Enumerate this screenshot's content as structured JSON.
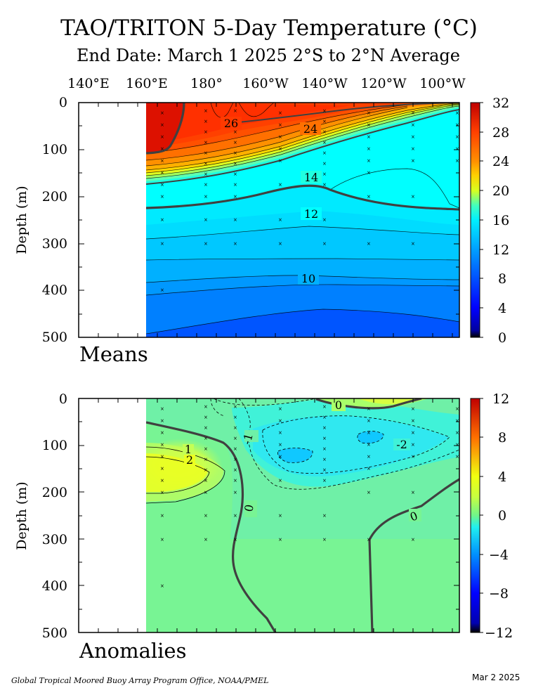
{
  "title": "TAO/TRITON 5-Day Temperature (°C)",
  "subtitle": "End Date: March 1 2025   2°S to 2°N Average",
  "longitude_labels": [
    "140°E",
    "160°E",
    "180°",
    "160°W",
    "140°W",
    "120°W",
    "100°W"
  ],
  "footer": "Global Tropical Moored Buoy Array Program Office, NOAA/PMEL",
  "date": "Mar  2 2025",
  "chart_data": [
    {
      "type": "heatmap",
      "panel": "Means",
      "ylabel": "Depth (m)",
      "x_range_lon_east": [
        130,
        280
      ],
      "data_start_lon_east": 162,
      "yticks": [
        0,
        100,
        200,
        300,
        400,
        500
      ],
      "ylim": [
        500,
        0
      ],
      "colorbar_ticks": [
        32,
        28,
        24,
        20,
        16,
        12,
        8,
        4,
        0
      ],
      "colorbar_range": [
        0,
        32
      ],
      "contour_labels": [
        {
          "text": "26",
          "lon": 187,
          "depth": 45
        },
        {
          "text": "24",
          "lon": 217,
          "depth": 55
        },
        {
          "text": "14",
          "lon": 217,
          "depth": 158
        },
        {
          "text": "12",
          "lon": 220,
          "depth": 233
        },
        {
          "text": "10",
          "lon": 216,
          "depth": 372
        }
      ],
      "isotherm_depths": {
        "lon": [
          162,
          180,
          200,
          220,
          240,
          260,
          276
        ],
        "d26": [
          105,
          70,
          50,
          25,
          12,
          5,
          2
        ],
        "d24": [
          150,
          130,
          100,
          75,
          50,
          25,
          8
        ],
        "d20": [
          165,
          150,
          130,
          105,
          75,
          45,
          18
        ],
        "d14": [
          225,
          210,
          180,
          155,
          120,
          85,
          55
        ],
        "d12": [
          295,
          280,
          260,
          240,
          270,
          285,
          285
        ],
        "d10": [
          395,
          385,
          370,
          370,
          380,
          385,
          390
        ]
      },
      "buoy_longitudes": [
        165,
        180,
        190,
        205,
        220,
        235,
        250,
        265
      ]
    },
    {
      "type": "heatmap",
      "panel": "Anomalies",
      "ylabel": "Depth (m)",
      "x_range_lon_east": [
        130,
        280
      ],
      "data_start_lon_east": 162,
      "yticks": [
        0,
        100,
        200,
        300,
        400,
        500
      ],
      "ylim": [
        500,
        0
      ],
      "colorbar_ticks": [
        12,
        8,
        4,
        0,
        -4,
        -8,
        -12
      ],
      "colorbar_range": [
        -12,
        12
      ],
      "contour_labels": [
        {
          "text": "0",
          "lon": 225,
          "depth": 12
        },
        {
          "text": "-1",
          "lon": 195,
          "depth": 80
        },
        {
          "text": "-2",
          "lon": 254,
          "depth": 100
        },
        {
          "text": "1",
          "lon": 170,
          "depth": 115
        },
        {
          "text": "2",
          "lon": 170,
          "depth": 135
        },
        {
          "text": "0",
          "lon": 193,
          "depth": 240
        },
        {
          "text": "0",
          "lon": 258,
          "depth": 250
        }
      ],
      "features": [
        {
          "name": "warm anomaly core",
          "lon": 166,
          "depth": 150,
          "value": 3
        },
        {
          "name": "cool anomaly core",
          "lon": 215,
          "depth": 125,
          "value": -3
        },
        {
          "name": "cool anomaly core",
          "lon": 245,
          "depth": 85,
          "value": -3
        },
        {
          "name": "warm surface anomaly",
          "lon": 240,
          "depth": 5,
          "value": 1
        }
      ],
      "buoy_longitudes": [
        165,
        180,
        190,
        205,
        220,
        235,
        250,
        265
      ]
    }
  ]
}
